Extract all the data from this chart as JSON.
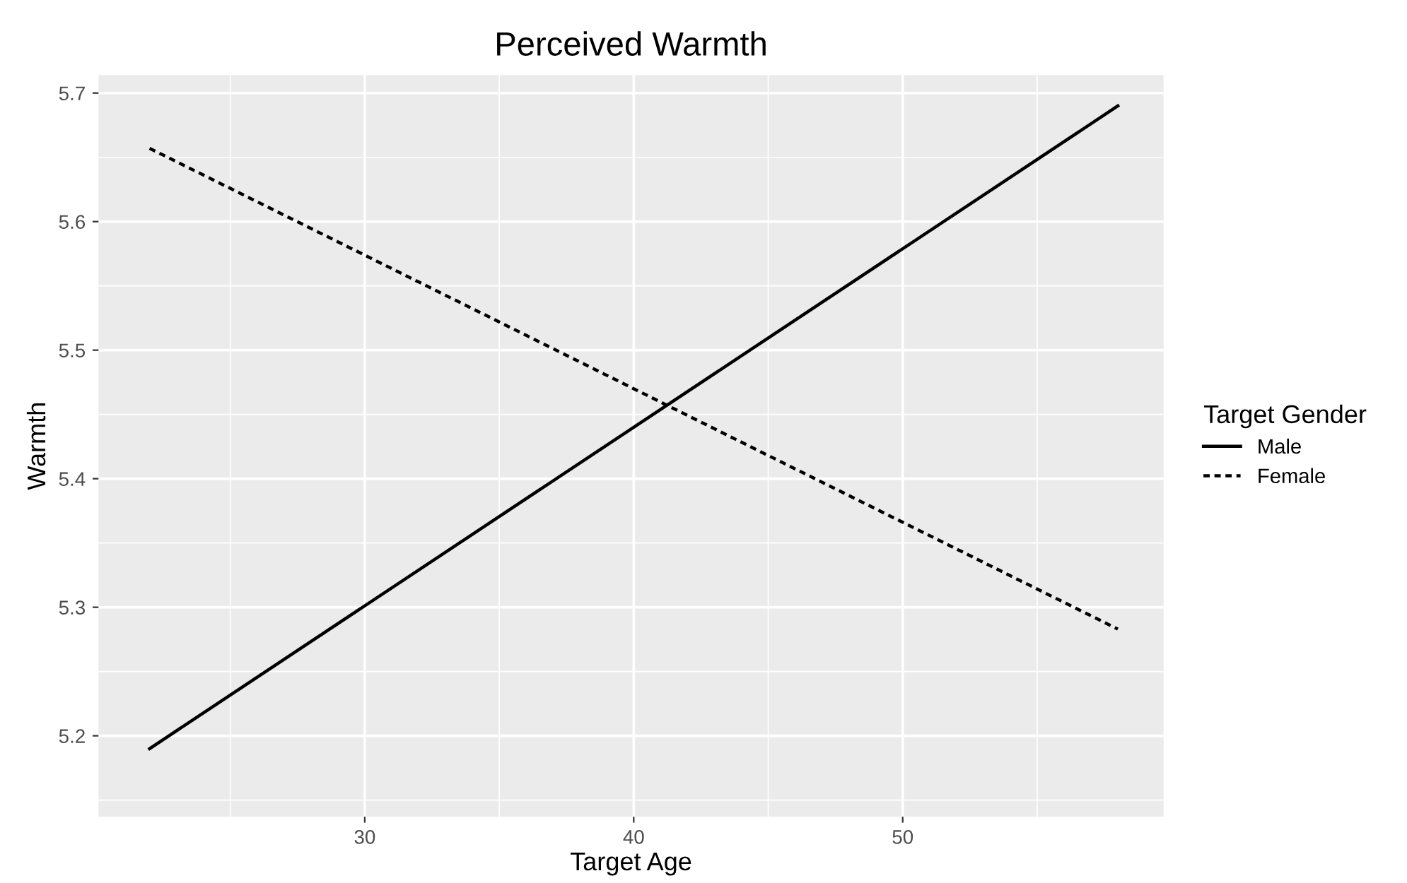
{
  "chart_data": {
    "type": "line",
    "title": "Perceived Warmth",
    "xlabel": "Target Age",
    "ylabel": "Warmth",
    "legend_title": "Target Gender",
    "x": [
      22,
      58
    ],
    "series": [
      {
        "name": "Male",
        "color": "#000000",
        "values": [
          5.19,
          5.69
        ],
        "line_style": "solid"
      },
      {
        "name": "Female",
        "color": "#000000",
        "values": [
          5.657,
          5.283
        ],
        "line_style": "dotted"
      }
    ],
    "xlim": [
      20.1,
      59.7
    ],
    "xticks": [
      30,
      40,
      50
    ],
    "ylim": [
      5.137,
      5.714
    ],
    "yticks": [
      5.2,
      5.3,
      5.4,
      5.5,
      5.6,
      5.7
    ],
    "grid": true,
    "legend": "right",
    "marker": "none"
  }
}
